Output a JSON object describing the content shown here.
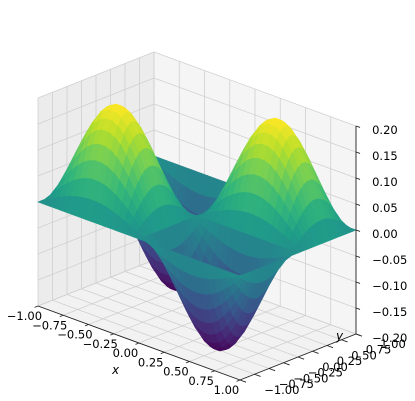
{
  "chart_data": {
    "type": "surface3d",
    "title": "",
    "function": "z = 0.2 * sin(pi * x) * sin(pi * y) approximately: two positive peaks and two negative troughs",
    "xlabel": "x",
    "ylabel": "y",
    "zlabel": "",
    "xlim": [
      -1.0,
      1.0
    ],
    "ylim": [
      -1.0,
      1.0
    ],
    "zlim": [
      -0.2,
      0.2
    ],
    "x_ticks": [
      "−1.00",
      "−0.75",
      "−0.50",
      "−0.25",
      "0.00",
      "0.25",
      "0.50",
      "0.75",
      "1.00"
    ],
    "y_ticks": [
      "−1.00",
      "−0.75",
      "−0.50",
      "−0.25",
      "0.00",
      "0.25",
      "0.50",
      "0.75",
      "1.00"
    ],
    "z_ticks": [
      "−0.20",
      "−0.15",
      "−0.10",
      "−0.05",
      "0.00",
      "0.05",
      "0.10",
      "0.15",
      "0.20"
    ],
    "colormap": "viridis",
    "grid": true,
    "peaks": [
      {
        "x": -0.5,
        "y": -0.5,
        "z": 0.2
      },
      {
        "x": 0.5,
        "y": 0.5,
        "z": 0.2
      }
    ],
    "troughs": [
      {
        "x": -0.5,
        "y": 0.5,
        "z": -0.2
      },
      {
        "x": 0.5,
        "y": -0.5,
        "z": -0.2
      }
    ],
    "pane_color": "#f2f2f2"
  }
}
